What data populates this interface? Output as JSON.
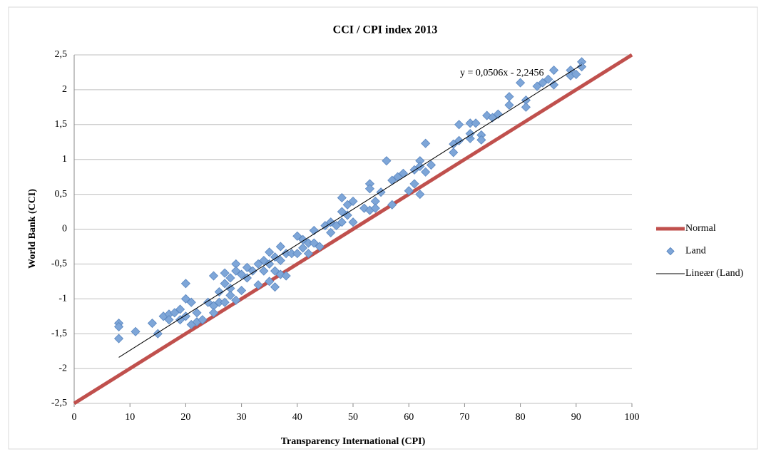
{
  "chart_data": {
    "type": "scatter",
    "title": "CCI / CPI index 2013",
    "x_label": "Transparency International (CPI)",
    "y_label": "World Bank (CCI)",
    "annotation": "y = 0,0506x - 2,2456",
    "xlim": [
      0,
      100
    ],
    "xticks": [
      0,
      10,
      20,
      30,
      40,
      50,
      60,
      70,
      80,
      90,
      100
    ],
    "ylim": [
      -2.5,
      2.5
    ],
    "yticks": [
      {
        "value": -2.5,
        "label": "-2,5"
      },
      -2,
      {
        "value": -1.5,
        "label": "-1,5"
      },
      -1,
      {
        "value": -0.5,
        "label": "-0,5"
      },
      0,
      {
        "value": 0.5,
        "label": "0,5"
      },
      1,
      {
        "value": 1.5,
        "label": "1,5"
      },
      2,
      {
        "value": 2.5,
        "label": "2,5"
      }
    ],
    "grid": true,
    "legend": "right",
    "series": [
      {
        "name": "Normal",
        "type": "line",
        "color": "#c0504d",
        "width": 5,
        "x": [
          0,
          100
        ],
        "values": [
          -2.5,
          2.5
        ]
      },
      {
        "name": "Land",
        "type": "scatter",
        "color": "#7ea6d8",
        "x": [
          8,
          8,
          8,
          11,
          14,
          15,
          16,
          17,
          17,
          18,
          19,
          19,
          20,
          20,
          20,
          21,
          21,
          22,
          22,
          23,
          24,
          25,
          25,
          25,
          26,
          26,
          27,
          27,
          27,
          28,
          28,
          28,
          29,
          29,
          29,
          30,
          30,
          31,
          31,
          32,
          33,
          33,
          34,
          34,
          35,
          35,
          35,
          36,
          36,
          36,
          37,
          37,
          37,
          38,
          38,
          39,
          40,
          40,
          41,
          41,
          42,
          42,
          43,
          43,
          44,
          45,
          46,
          46,
          47,
          48,
          48,
          48,
          49,
          49,
          50,
          50,
          52,
          53,
          53,
          53,
          54,
          54,
          55,
          56,
          57,
          57,
          58,
          59,
          60,
          61,
          61,
          62,
          62,
          62,
          63,
          63,
          64,
          68,
          68,
          69,
          69,
          71,
          71,
          71,
          72,
          73,
          73,
          74,
          75,
          76,
          78,
          78,
          80,
          81,
          81,
          83,
          84,
          85,
          86,
          86,
          89,
          89,
          90,
          91,
          91
        ],
        "values": [
          -1.35,
          -1.4,
          -1.57,
          -1.47,
          -1.35,
          -1.5,
          -1.25,
          -1.22,
          -1.3,
          -1.2,
          -1.15,
          -1.3,
          -0.78,
          -1.0,
          -1.25,
          -1.05,
          -1.37,
          -1.33,
          -1.2,
          -1.3,
          -1.05,
          -0.67,
          -1.1,
          -1.2,
          -0.9,
          -1.05,
          -0.63,
          -0.78,
          -1.05,
          -0.7,
          -0.85,
          -0.95,
          -0.5,
          -0.6,
          -1.02,
          -0.65,
          -0.88,
          -0.55,
          -0.7,
          -0.6,
          -0.5,
          -0.8,
          -0.45,
          -0.6,
          -0.33,
          -0.5,
          -0.75,
          -0.4,
          -0.6,
          -0.83,
          -0.25,
          -0.45,
          -0.65,
          -0.35,
          -0.67,
          -0.35,
          -0.1,
          -0.35,
          -0.15,
          -0.27,
          -0.2,
          -0.35,
          -0.02,
          -0.2,
          -0.25,
          0.05,
          0.1,
          -0.05,
          0.05,
          0.45,
          0.1,
          0.25,
          0.35,
          0.2,
          0.4,
          0.1,
          0.3,
          0.65,
          0.58,
          0.27,
          0.4,
          0.3,
          0.53,
          0.98,
          0.35,
          0.7,
          0.75,
          0.8,
          0.55,
          0.85,
          0.65,
          0.98,
          0.5,
          0.9,
          1.23,
          0.82,
          0.92,
          1.22,
          1.1,
          1.5,
          1.27,
          1.52,
          1.3,
          1.37,
          1.52,
          1.35,
          1.28,
          1.63,
          1.6,
          1.65,
          1.9,
          1.78,
          2.1,
          1.85,
          1.75,
          2.05,
          2.1,
          2.15,
          2.28,
          2.07,
          2.28,
          2.2,
          2.22,
          2.4,
          2.33
        ]
      },
      {
        "name": "Lineær (Land)",
        "type": "line",
        "color": "#000000",
        "width": 1,
        "x": [
          8,
          91
        ],
        "values": [
          -1.84,
          2.36
        ]
      }
    ]
  }
}
